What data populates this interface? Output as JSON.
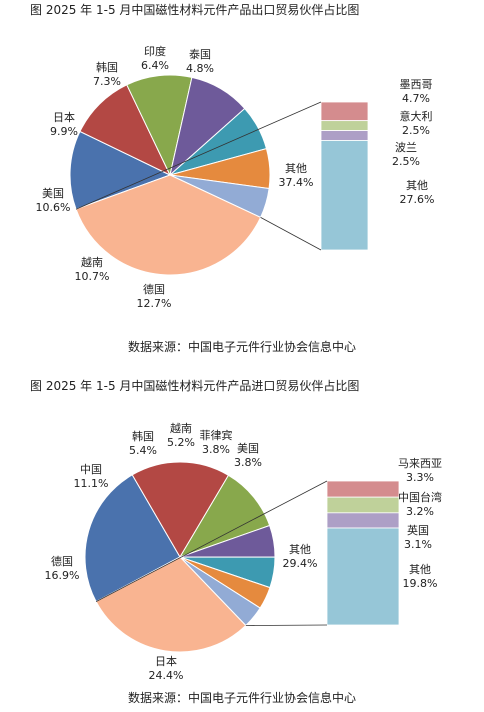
{
  "colors": {
    "text": "#222222",
    "rest_box": "#96c6d7"
  },
  "chart_data": [
    {
      "type": "pie",
      "title": "图    2025 年 1-5 月中国磁性材料元件产品出口贸易伙伴占比图",
      "source": "数据来源：中国电子元件行业协会信息中心",
      "pie_slices": [
        {
          "name": "德国",
          "value": 12.7,
          "label": "12.7%",
          "color": "#4a72ad"
        },
        {
          "name": "越南",
          "value": 10.7,
          "label": "10.7%",
          "color": "#b34844"
        },
        {
          "name": "美国",
          "value": 10.6,
          "label": "10.6%",
          "color": "#88a84c"
        },
        {
          "name": "日本",
          "value": 9.9,
          "label": "9.9%",
          "color": "#6e5a9a"
        },
        {
          "name": "韩国",
          "value": 7.3,
          "label": "7.3%",
          "color": "#3d9ab1"
        },
        {
          "name": "印度",
          "value": 6.4,
          "label": "6.4%",
          "color": "#e58a3e"
        },
        {
          "name": "泰国",
          "value": 4.8,
          "label": "4.8%",
          "color": "#92abd5"
        },
        {
          "name": "其他",
          "value": 37.4,
          "label": "37.4%",
          "color": "#f9b491"
        }
      ],
      "rest_breakdown": [
        {
          "name": "墨西哥",
          "value": 4.7,
          "label": "4.7%",
          "color": "#d48c8e"
        },
        {
          "name": "意大利",
          "value": 2.5,
          "label": "2.5%",
          "color": "#bfd19a"
        },
        {
          "name": "波兰",
          "value": 2.5,
          "label": "2.5%",
          "color": "#ad9fc6"
        },
        {
          "name": "其他",
          "value": 27.6,
          "label": "27.6%",
          "color": "#96c6d7"
        }
      ]
    },
    {
      "type": "pie",
      "title": "图    2025 年 1-5 月中国磁性材料元件产品进口贸易伙伴占比图",
      "source": "数据来源：中国电子元件行业协会信息中心",
      "pie_slices": [
        {
          "name": "日本",
          "value": 24.4,
          "label": "24.4%",
          "color": "#4a72ad"
        },
        {
          "name": "德国",
          "value": 16.9,
          "label": "16.9%",
          "color": "#b34844"
        },
        {
          "name": "中国",
          "value": 11.1,
          "label": "11.1%",
          "color": "#88a84c"
        },
        {
          "name": "韩国",
          "value": 5.4,
          "label": "5.4%",
          "color": "#6e5a9a"
        },
        {
          "name": "越南",
          "value": 5.2,
          "label": "5.2%",
          "color": "#3d9ab1"
        },
        {
          "name": "菲律宾",
          "value": 3.8,
          "label": "3.8%",
          "color": "#e58a3e"
        },
        {
          "name": "美国",
          "value": 3.8,
          "label": "3.8%",
          "color": "#92abd5"
        },
        {
          "name": "其他",
          "value": 29.4,
          "label": "29.4%",
          "color": "#f9b491"
        }
      ],
      "rest_breakdown": [
        {
          "name": "马来西亚",
          "value": 3.3,
          "label": "3.3%",
          "color": "#d48c8e"
        },
        {
          "name": "中国台湾",
          "value": 3.2,
          "label": "3.2%",
          "color": "#bfd19a"
        },
        {
          "name": "英国",
          "value": 3.1,
          "label": "3.1%",
          "color": "#ad9fc6"
        },
        {
          "name": "其他",
          "value": 19.8,
          "label": "19.8%",
          "color": "#96c6d7"
        }
      ]
    }
  ]
}
